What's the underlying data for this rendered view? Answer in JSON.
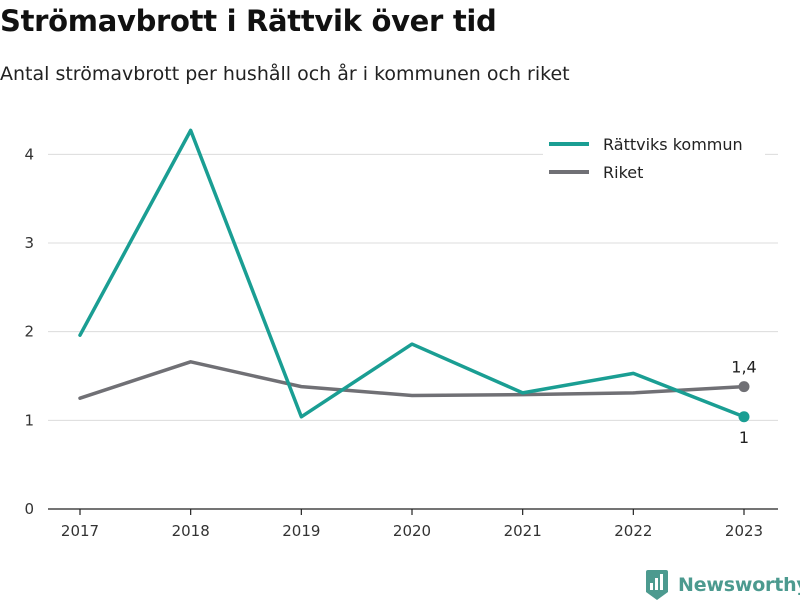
{
  "header": {
    "title": "Strömavbrott i Rättvik över tid",
    "subtitle": "Antal strömavbrott per hushåll och år i kommunen och riket"
  },
  "brand": {
    "name": "Newsworthy",
    "color": "#4c9a8f",
    "logo_icon": "bar-chart-flag-icon"
  },
  "chart_data": {
    "type": "line",
    "x": [
      "2017",
      "2018",
      "2019",
      "2020",
      "2021",
      "2022",
      "2023"
    ],
    "ylim": [
      0,
      4.5
    ],
    "yticks": [
      0,
      1,
      2,
      3,
      4
    ],
    "grid": true,
    "legend_position": "top-right",
    "series": [
      {
        "name": "Rättviks kommun",
        "color": "#1a9e93",
        "values": [
          1.96,
          4.27,
          1.04,
          1.86,
          1.31,
          1.53,
          1.04
        ],
        "end_label": "1",
        "end_label_position": "below"
      },
      {
        "name": "Riket",
        "color": "#707075",
        "values": [
          1.25,
          1.66,
          1.38,
          1.28,
          1.29,
          1.31,
          1.38
        ],
        "end_label": "1,4",
        "end_label_position": "above"
      }
    ]
  }
}
